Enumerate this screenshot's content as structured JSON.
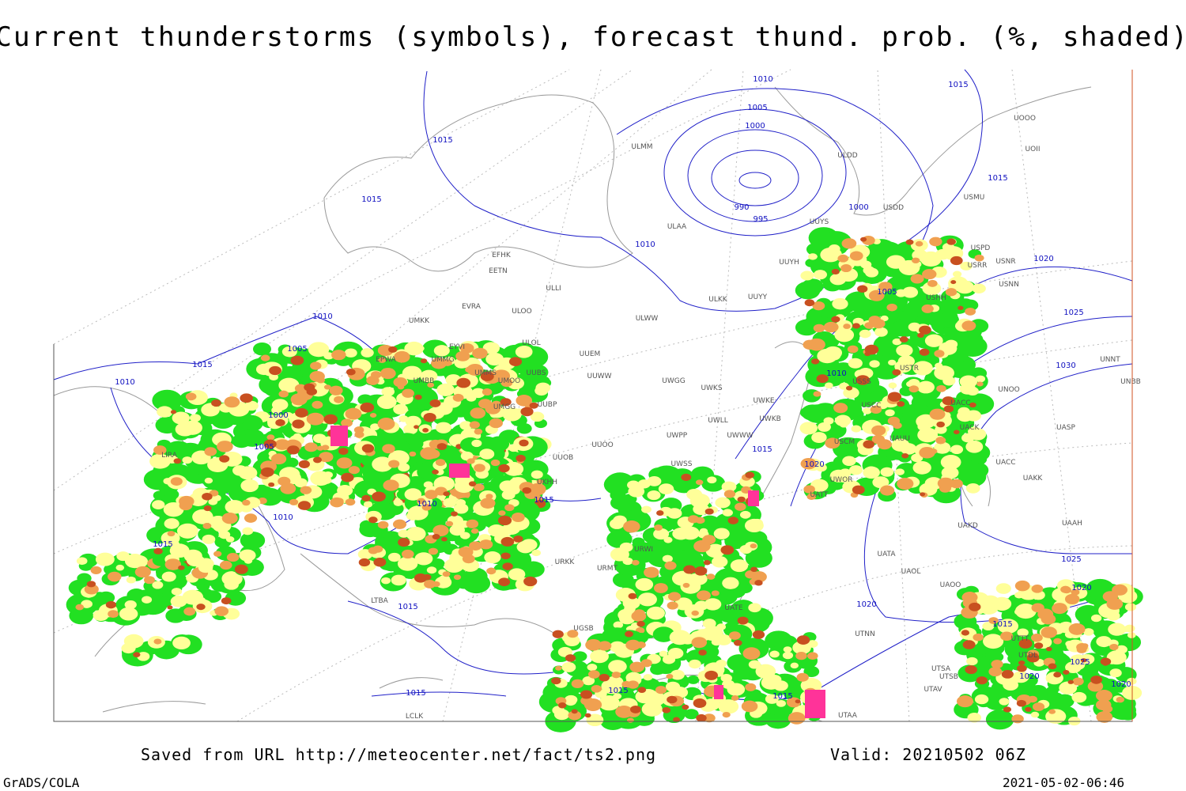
{
  "title": "Current thunderstorms (symbols), forecast thund. prob. (%, shaded)",
  "footer": {
    "source": "Saved from URL http://meteocenter.net/fact/ts2.png",
    "valid": "Valid: 20210502 06Z",
    "software": "GrADS/COLA",
    "timestamp": "2021-05-02-06:46"
  },
  "isobar_labels": [
    1010,
    1015,
    1005,
    1000,
    1015,
    990,
    995,
    1000,
    1015,
    1015,
    1010,
    1020,
    1005,
    1025,
    1010,
    1005,
    1015,
    1030,
    1010,
    1010,
    1000,
    1005,
    1015,
    1020,
    1015,
    1010,
    1010,
    1015,
    1025,
    1020,
    1015,
    1020,
    1015,
    1025,
    1015,
    1015,
    1015,
    1020,
    1020
  ],
  "stations": [
    "ULMM",
    "ULDD",
    "UOOO",
    "UOII",
    "USMU",
    "USDD",
    "ULAA",
    "UUYS",
    "USPD",
    "USNR",
    "USRR",
    "USNN",
    "UUYH",
    "USHH",
    "ULKK",
    "UUYY",
    "EFHK",
    "EETN",
    "ULLI",
    "EVRA",
    "ULOO",
    "UMKK",
    "ULWW",
    "ULOL",
    "UUEM",
    "EYVI",
    "EPWA",
    "UMMG",
    "UMMS",
    "UUBS",
    "UUWW",
    "UMOO",
    "UWGG",
    "UWKS",
    "USSS",
    "USTR",
    "UNOO",
    "UNNT",
    "UNBB",
    "UMBB",
    "UWKE",
    "USCC",
    "UACC",
    "UWKB",
    "UWLL",
    "UACK",
    "UASP",
    "UMGG",
    "UUBP",
    "UWPP",
    "UWWW",
    "USCM",
    "UAUU",
    "UUOO",
    "UUOB",
    "UWSS",
    "UACC",
    "UAKK",
    "UWOR",
    "UATT",
    "UKHH",
    "UAKD",
    "UAAH",
    "URWI",
    "URKK",
    "URMT",
    "UATA",
    "UAOL",
    "UAOO",
    "UATE",
    "UTNN",
    "UGSB",
    "UTSB",
    "UTSA",
    "UTAV",
    "UTAA",
    "LTBA",
    "LIRA",
    "LCLK",
    "UTDL",
    "UTTT"
  ]
}
